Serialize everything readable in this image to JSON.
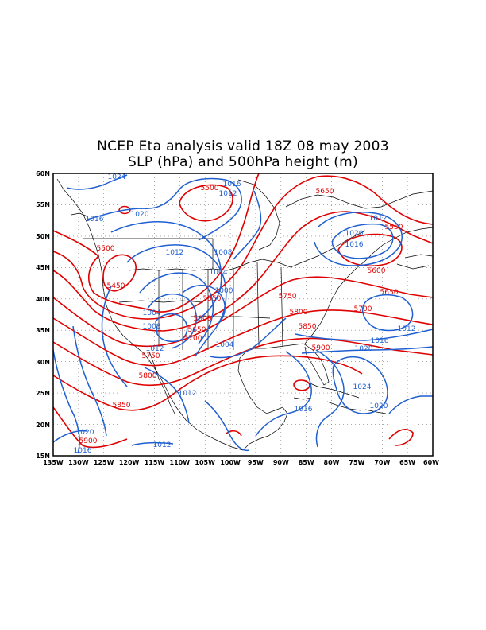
{
  "title_line1": "NCEP Eta analysis valid 18Z 08 may 2003",
  "title_line2": "SLP (hPa) and 500hPa height (m)",
  "axes": {
    "lon_ticks": [
      "135W",
      "130W",
      "125W",
      "120W",
      "115W",
      "110W",
      "105W",
      "100W",
      "95W",
      "90W",
      "85W",
      "80W",
      "75W",
      "70W",
      "65W",
      "60W"
    ],
    "lat_ticks": [
      "60N",
      "55N",
      "50N",
      "45N",
      "40N",
      "35N",
      "30N",
      "25N",
      "20N",
      "15N"
    ]
  },
  "colors": {
    "slp": "#1f5fd1",
    "height": "#e00000",
    "coast": "#000000",
    "grid": "#777777"
  },
  "slp_labels": [
    "1024",
    "1016",
    "1012",
    "1020",
    "1016",
    "1012",
    "1008",
    "1004",
    "1000",
    "1004",
    "1008",
    "1012",
    "1004",
    "1012",
    "1016",
    "1020",
    "1024",
    "1020",
    "1012",
    "1016",
    "1020",
    "1016",
    "1012",
    "1020",
    "1016",
    "1012"
  ],
  "height_labels": [
    "5500",
    "5650",
    "5550",
    "5500",
    "5450",
    "5600",
    "5550",
    "5600",
    "5650",
    "5700",
    "5750",
    "5800",
    "5700",
    "5650",
    "5850",
    "5750",
    "5900",
    "5800",
    "5850",
    "5900"
  ]
}
